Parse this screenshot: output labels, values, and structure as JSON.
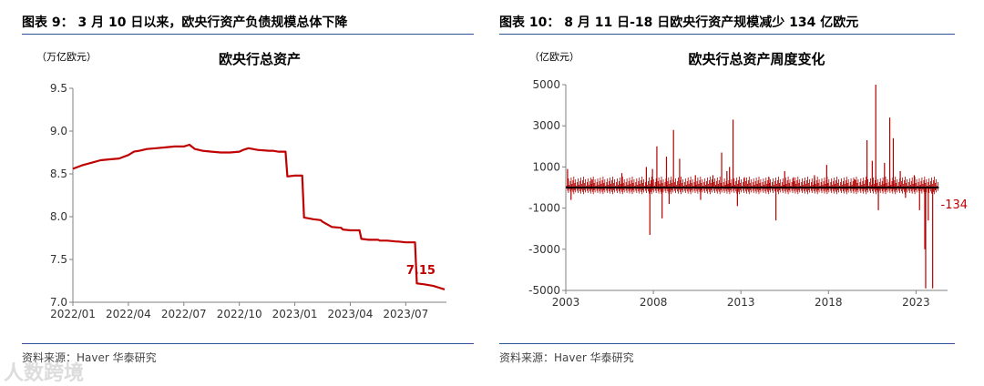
{
  "figures": [
    {
      "figure_title": "图表 9：  3 月 10 日以来，欧央行资产负债规模总体下降",
      "source": "资料来源：Haver 华泰研究"
    },
    {
      "figure_title": "图表 10：  8 月 11 日-18 日欧央行资产规模减少 134 亿欧元",
      "source": "资料来源：Haver 华泰研究"
    }
  ],
  "watermark": "人数跨境",
  "colors": {
    "line": "#c00000",
    "spike": "#b00000",
    "zero_line": "#000000",
    "rule": "#2f5597",
    "axis": "#808080"
  },
  "chart_data": [
    {
      "type": "line",
      "title": "欧央行总资产",
      "unit_label": "（万亿欧元）",
      "ylim": [
        7.0,
        9.5
      ],
      "yticks": [
        7.0,
        7.5,
        8.0,
        8.5,
        9.0,
        9.5
      ],
      "ytick_labels": [
        "7.0",
        "7.5",
        "8.0",
        "8.5",
        "9.0",
        "9.5"
      ],
      "xlim": [
        0,
        20.2
      ],
      "xticks": [
        0,
        3,
        6,
        9,
        12,
        15,
        18
      ],
      "xtick_labels": [
        "2022/01",
        "2022/04",
        "2022/07",
        "2022/10",
        "2023/01",
        "2023/04",
        "2023/07"
      ],
      "series": [
        {
          "x": [
            0,
            0.5,
            1,
            1.5,
            2,
            2.5,
            3,
            3.3,
            3.6,
            4,
            4.5,
            5,
            5.5,
            6,
            6.3,
            6.6,
            7,
            7.5,
            8,
            8.5,
            9,
            9.2,
            9.5,
            10,
            10.6,
            10.8,
            11.1,
            11.5,
            11.6,
            12,
            12.4,
            12.5,
            13,
            13.4,
            13.5,
            14,
            14.5,
            14.6,
            15,
            15.5,
            15.6,
            16,
            16.5,
            16.6,
            17,
            17.5,
            17.6,
            18,
            18.5,
            18.6,
            19,
            19.5,
            19.8,
            20.1
          ],
          "y": [
            8.56,
            8.6,
            8.63,
            8.66,
            8.67,
            8.68,
            8.72,
            8.76,
            8.77,
            8.79,
            8.8,
            8.81,
            8.82,
            8.82,
            8.84,
            8.79,
            8.77,
            8.76,
            8.75,
            8.75,
            8.76,
            8.78,
            8.8,
            8.78,
            8.77,
            8.77,
            8.76,
            8.76,
            8.47,
            8.48,
            8.48,
            7.99,
            7.97,
            7.96,
            7.94,
            7.88,
            7.87,
            7.85,
            7.84,
            7.84,
            7.74,
            7.73,
            7.73,
            7.72,
            7.72,
            7.71,
            7.71,
            7.7,
            7.7,
            7.22,
            7.21,
            7.19,
            7.17,
            7.15
          ]
        }
      ],
      "annotation": {
        "text": "7.15",
        "x": 20.1,
        "y": 7.15
      }
    },
    {
      "type": "bar",
      "title": "欧央行总资产周度变化",
      "unit_label": "（亿欧元）",
      "ylim": [
        -5000,
        5000
      ],
      "yticks": [
        -5000,
        -3000,
        -1000,
        1000,
        3000,
        5000
      ],
      "ytick_labels": [
        "-5000",
        "-3000",
        "-1000",
        "1000",
        "3000",
        "5000"
      ],
      "xlim": [
        2003,
        2024.8
      ],
      "xticks": [
        2003,
        2008,
        2013,
        2018,
        2023
      ],
      "xtick_labels": [
        "2003",
        "2008",
        "2013",
        "2018",
        "2023"
      ],
      "baseline": 0,
      "spikes": {
        "x": [
          2003.1,
          2003.3,
          2004.5,
          2006.2,
          2007.6,
          2007.8,
          2007.95,
          2008.2,
          2008.5,
          2008.75,
          2008.9,
          2009.15,
          2009.5,
          2010.4,
          2010.7,
          2011.4,
          2011.9,
          2012.2,
          2012.35,
          2012.55,
          2012.8,
          2013.2,
          2014.6,
          2015.0,
          2015.5,
          2016.0,
          2017.2,
          2017.9,
          2019.5,
          2020.2,
          2020.5,
          2020.7,
          2020.85,
          2021.2,
          2021.5,
          2021.7,
          2022.1,
          2022.4,
          2022.9,
          2023.2,
          2023.5,
          2023.55,
          2023.7,
          2023.95,
          2024.1
        ],
        "y": [
          900,
          -600,
          400,
          700,
          1000,
          -2300,
          900,
          2000,
          -1500,
          1500,
          -800,
          2800,
          1400,
          600,
          -600,
          600,
          1700,
          800,
          1000,
          3300,
          -900,
          500,
          500,
          -1600,
          800,
          500,
          600,
          1100,
          400,
          2300,
          1300,
          5000,
          -1100,
          1200,
          3400,
          2400,
          800,
          -500,
          600,
          -1100,
          -3000,
          -4900,
          -1600,
          -4900,
          -134
        ]
      },
      "annotation": {
        "text": "-134",
        "x": 2024.1,
        "y": -134
      }
    }
  ]
}
